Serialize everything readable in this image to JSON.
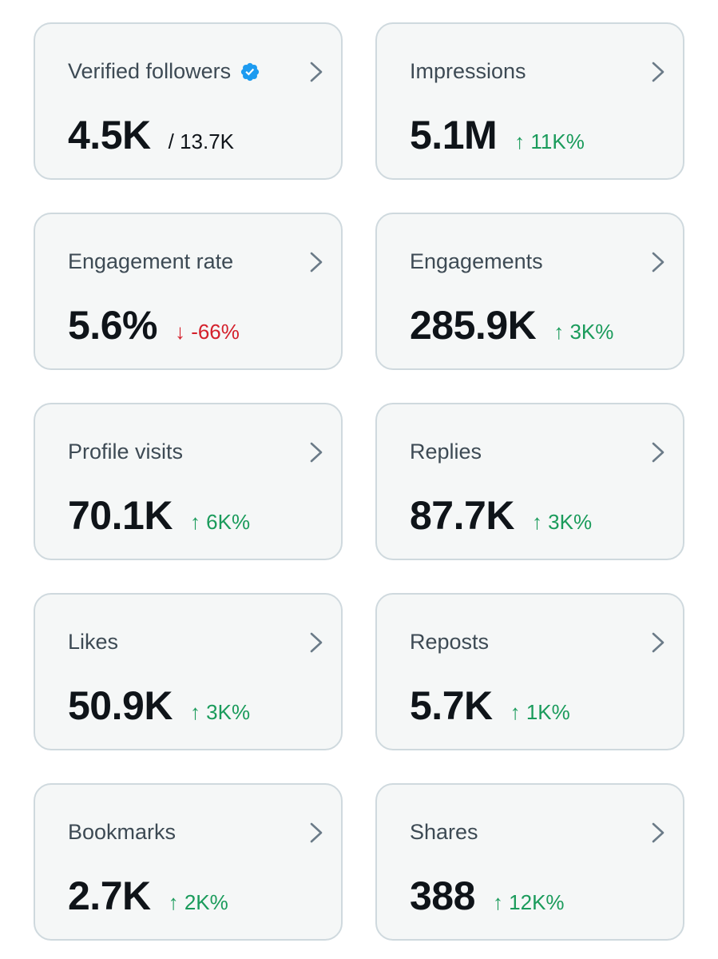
{
  "colors": {
    "card_background": "#f5f7f7",
    "card_border": "#cfd9de",
    "label": "#3d4a54",
    "value": "#0f1419",
    "positive": "#1a9b5b",
    "negative": "#d4202b",
    "verified_badge": "#1d9bf0",
    "chevron": "#6b7b88"
  },
  "cards": [
    {
      "label": "Verified followers",
      "value": "4.5K",
      "secondary": "/ 13.7K",
      "verified": true,
      "icon": "chevron-right-icon"
    },
    {
      "label": "Impressions",
      "value": "5.1M",
      "delta": "↑ 11K%",
      "trend": "up",
      "icon": "chevron-right-icon"
    },
    {
      "label": "Engagement rate",
      "value": "5.6%",
      "delta": "↓ -66%",
      "trend": "down",
      "icon": "chevron-right-icon"
    },
    {
      "label": "Engagements",
      "value": "285.9K",
      "delta": "↑ 3K%",
      "trend": "up",
      "icon": "chevron-right-icon"
    },
    {
      "label": "Profile visits",
      "value": "70.1K",
      "delta": "↑ 6K%",
      "trend": "up",
      "icon": "chevron-right-icon"
    },
    {
      "label": "Replies",
      "value": "87.7K",
      "delta": "↑ 3K%",
      "trend": "up",
      "icon": "chevron-right-icon"
    },
    {
      "label": "Likes",
      "value": "50.9K",
      "delta": "↑ 3K%",
      "trend": "up",
      "icon": "chevron-right-icon"
    },
    {
      "label": "Reposts",
      "value": "5.7K",
      "delta": "↑ 1K%",
      "trend": "up",
      "icon": "chevron-right-icon"
    },
    {
      "label": "Bookmarks",
      "value": "2.7K",
      "delta": "↑ 2K%",
      "trend": "up",
      "icon": "chevron-right-icon"
    },
    {
      "label": "Shares",
      "value": "388",
      "delta": "↑ 12K%",
      "trend": "up",
      "icon": "chevron-right-icon"
    }
  ]
}
